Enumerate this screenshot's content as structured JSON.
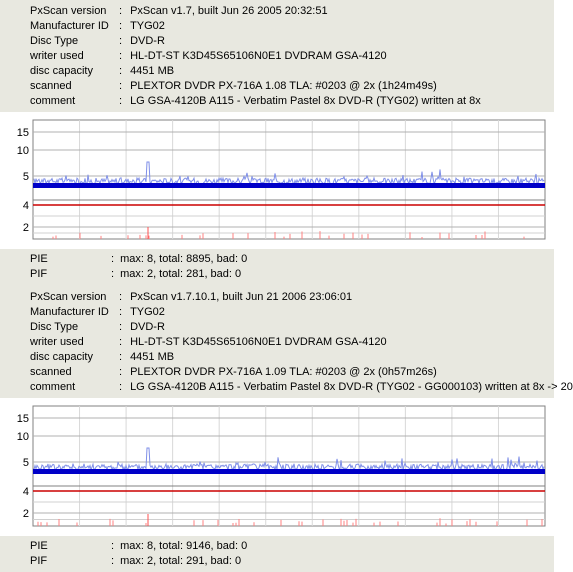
{
  "panels": [
    {
      "info": [
        {
          "label": "PxScan version",
          "value": "PxScan v1.7, built Jun 26 2005 20:32:51"
        },
        {
          "label": "Manufacturer ID",
          "value": "TYG02"
        },
        {
          "label": "Disc Type",
          "value": "DVD-R"
        },
        {
          "label": "writer used",
          "value": "HL-DT-ST K3D45S65106N0E1 DVDRAM GSA-4120"
        },
        {
          "label": "disc capacity",
          "value": "4451 MB"
        },
        {
          "label": "scanned",
          "value": "PLEXTOR DVDR PX-716A 1.08 TLA: #0203 @ 2x (1h24m49s)"
        },
        {
          "label": "comment",
          "value": "LG GSA-4120B A115 - Verbatim Pastel 8x DVD-R (TYG02) written at 8x"
        }
      ],
      "stats": [
        {
          "label": "PIE",
          "value": "max: 8, total: 8895, bad: 0"
        },
        {
          "label": "PIF",
          "value": "max: 2, total: 281, bad: 0"
        }
      ]
    },
    {
      "info": [
        {
          "label": "PxScan version",
          "value": "PxScan v1.7.10.1, built Jun 21 2006 23:06:01"
        },
        {
          "label": "Manufacturer ID",
          "value": "TYG02"
        },
        {
          "label": "Disc Type",
          "value": "DVD-R"
        },
        {
          "label": "writer used",
          "value": "HL-DT-ST K3D45S65106N0E1 DVDRAM GSA-4120"
        },
        {
          "label": "disc capacity",
          "value": "4451 MB"
        },
        {
          "label": "scanned",
          "value": "PLEXTOR DVDR PX-716A 1.09 TLA: #0203 @ 2x (0h57m26s)"
        },
        {
          "label": "comment",
          "value": "LG GSA-4120B A115 - Verbatim Pastel 8x DVD-R (TYG02 - GG000103) written at 8x -> 20"
        }
      ],
      "stats": [
        {
          "label": "PIE",
          "value": "max: 8, total: 9146, bad: 0"
        },
        {
          "label": "PIF",
          "value": "max: 2, total: 291, bad: 0"
        }
      ]
    }
  ],
  "colors": {
    "panel_bg": "#e8e8e0",
    "pie_line": "#0000c8",
    "pif_line": "#ff8080",
    "threshold_line": "#cc0000",
    "grid": "#808080"
  },
  "chart_data": [
    {
      "type": "area",
      "pie_axis_ticks": [
        "15",
        "10",
        "5"
      ],
      "pif_axis_ticks": [
        "4",
        "2"
      ],
      "pie_max": 8,
      "pie_typical": 2,
      "pif_max": 2,
      "pif_typical": 0
    },
    {
      "type": "area",
      "pie_axis_ticks": [
        "15",
        "10",
        "5"
      ],
      "pif_axis_ticks": [
        "4",
        "2"
      ],
      "pie_max": 8,
      "pie_typical": 2,
      "pif_max": 2,
      "pif_typical": 0
    }
  ]
}
